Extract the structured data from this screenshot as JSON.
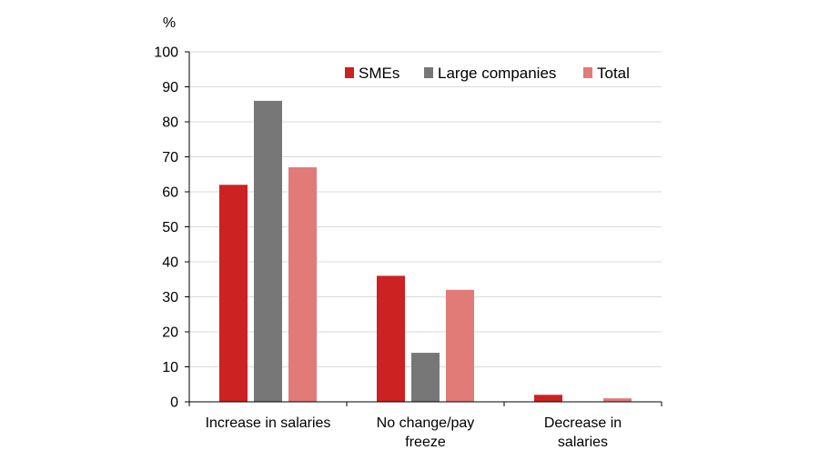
{
  "chart_data": {
    "type": "bar",
    "unit_label": "%",
    "categories": [
      [
        "Increase in salaries"
      ],
      [
        "No change/pay",
        "freeze"
      ],
      [
        "Decrease in",
        "salaries"
      ]
    ],
    "series": [
      {
        "name": "SMEs",
        "color": "#cc2222",
        "values": [
          62,
          36,
          2
        ]
      },
      {
        "name": "Large companies",
        "color": "#777777",
        "values": [
          86,
          14,
          0
        ]
      },
      {
        "name": "Total",
        "color": "#e07b78",
        "values": [
          67,
          32,
          1
        ]
      }
    ],
    "ylim": [
      0,
      100
    ],
    "yticks": [
      0,
      10,
      20,
      30,
      40,
      50,
      60,
      70,
      80,
      90,
      100
    ],
    "grid": true,
    "legend_position": "top-right"
  }
}
